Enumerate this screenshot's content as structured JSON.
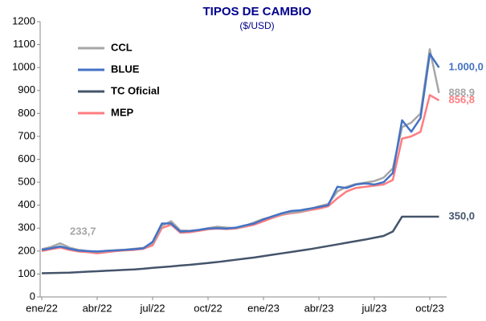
{
  "chart_data": {
    "type": "line",
    "title": "TIPOS DE CAMBIO",
    "subtitle": "($/USD)",
    "categories": [
      "ene/22",
      null,
      null,
      null,
      null,
      null,
      "abr/22",
      null,
      null,
      null,
      null,
      null,
      "jul/22",
      null,
      null,
      null,
      null,
      null,
      "oct/22",
      null,
      null,
      null,
      null,
      null,
      "ene/23",
      null,
      null,
      null,
      null,
      null,
      "abr/23",
      null,
      null,
      null,
      null,
      null,
      "jul/23",
      null,
      null,
      null,
      null,
      null,
      "oct/23",
      null
    ],
    "ylim": [
      0,
      1200
    ],
    "yticks": [
      0,
      100,
      200,
      300,
      400,
      500,
      600,
      700,
      800,
      900,
      1000,
      1100,
      1200
    ],
    "legend": "top-left",
    "series": [
      {
        "name": "CCL",
        "color": "#a6a6a6",
        "values": [
          208,
          218,
          233.7,
          215,
          205,
          200,
          196,
          200,
          204,
          206,
          210,
          214,
          235,
          310,
          330,
          290,
          288,
          292,
          300,
          306,
          302,
          300,
          310,
          325,
          340,
          350,
          362,
          368,
          372,
          382,
          395,
          405,
          460,
          480,
          492,
          498,
          505,
          520,
          560,
          740,
          760,
          800,
          1080,
          888.9
        ],
        "value_labels": [
          null,
          null,
          "233,7",
          null,
          null,
          null,
          null,
          null,
          null,
          null,
          null,
          null,
          null,
          null,
          null,
          null,
          null,
          null,
          null,
          null,
          null,
          null,
          null,
          null,
          null,
          null,
          null,
          null,
          null,
          null,
          null,
          null,
          null,
          null,
          null,
          null,
          null,
          null,
          null,
          null,
          null,
          null,
          null,
          "888,9"
        ]
      },
      {
        "name": "BLUE",
        "color": "#4472c4",
        "values": [
          205,
          212,
          220,
          210,
          202,
          200,
          198,
          201,
          203,
          205,
          208,
          212,
          240,
          320,
          320,
          285,
          287,
          292,
          298,
          300,
          298,
          302,
          312,
          320,
          338,
          352,
          365,
          375,
          378,
          385,
          392,
          400,
          480,
          475,
          490,
          495,
          490,
          500,
          540,
          770,
          720,
          780,
          1060,
          1000
        ],
        "value_labels": [
          null,
          null,
          null,
          null,
          null,
          null,
          null,
          null,
          null,
          null,
          null,
          null,
          null,
          null,
          null,
          null,
          null,
          null,
          null,
          null,
          null,
          null,
          null,
          null,
          null,
          null,
          null,
          null,
          null,
          null,
          null,
          null,
          null,
          null,
          null,
          null,
          null,
          null,
          null,
          null,
          null,
          null,
          null,
          "1.000,0"
        ]
      },
      {
        "name": "TC Oficial",
        "color": "#44546a",
        "values": [
          103,
          104,
          105,
          106,
          108,
          110,
          112,
          114,
          116,
          118,
          120,
          123,
          127,
          130,
          133,
          137,
          140,
          144,
          148,
          152,
          157,
          162,
          167,
          172,
          178,
          184,
          190,
          196,
          202,
          208,
          215,
          222,
          229,
          236,
          243,
          250,
          258,
          266,
          285,
          350,
          350,
          350,
          350,
          350
        ],
        "value_labels": [
          null,
          null,
          null,
          null,
          null,
          null,
          null,
          null,
          null,
          null,
          null,
          null,
          null,
          null,
          null,
          null,
          null,
          null,
          null,
          null,
          null,
          null,
          null,
          null,
          null,
          null,
          null,
          null,
          null,
          null,
          null,
          null,
          null,
          null,
          null,
          null,
          null,
          null,
          null,
          null,
          null,
          null,
          null,
          "350,0"
        ]
      },
      {
        "name": "MEP",
        "color": "#ff7c80",
        "values": [
          200,
          208,
          215,
          205,
          198,
          195,
          190,
          195,
          200,
          203,
          205,
          210,
          225,
          300,
          315,
          280,
          282,
          288,
          295,
          298,
          296,
          298,
          306,
          315,
          330,
          345,
          358,
          365,
          370,
          378,
          385,
          395,
          430,
          460,
          475,
          480,
          485,
          490,
          510,
          690,
          700,
          720,
          880,
          856.8
        ],
        "value_labels": [
          null,
          null,
          null,
          null,
          null,
          null,
          null,
          null,
          null,
          null,
          null,
          null,
          null,
          null,
          null,
          null,
          null,
          null,
          null,
          null,
          null,
          null,
          null,
          null,
          null,
          null,
          null,
          null,
          null,
          null,
          null,
          null,
          null,
          null,
          null,
          null,
          null,
          null,
          null,
          null,
          null,
          null,
          null,
          "856,8"
        ]
      }
    ]
  }
}
